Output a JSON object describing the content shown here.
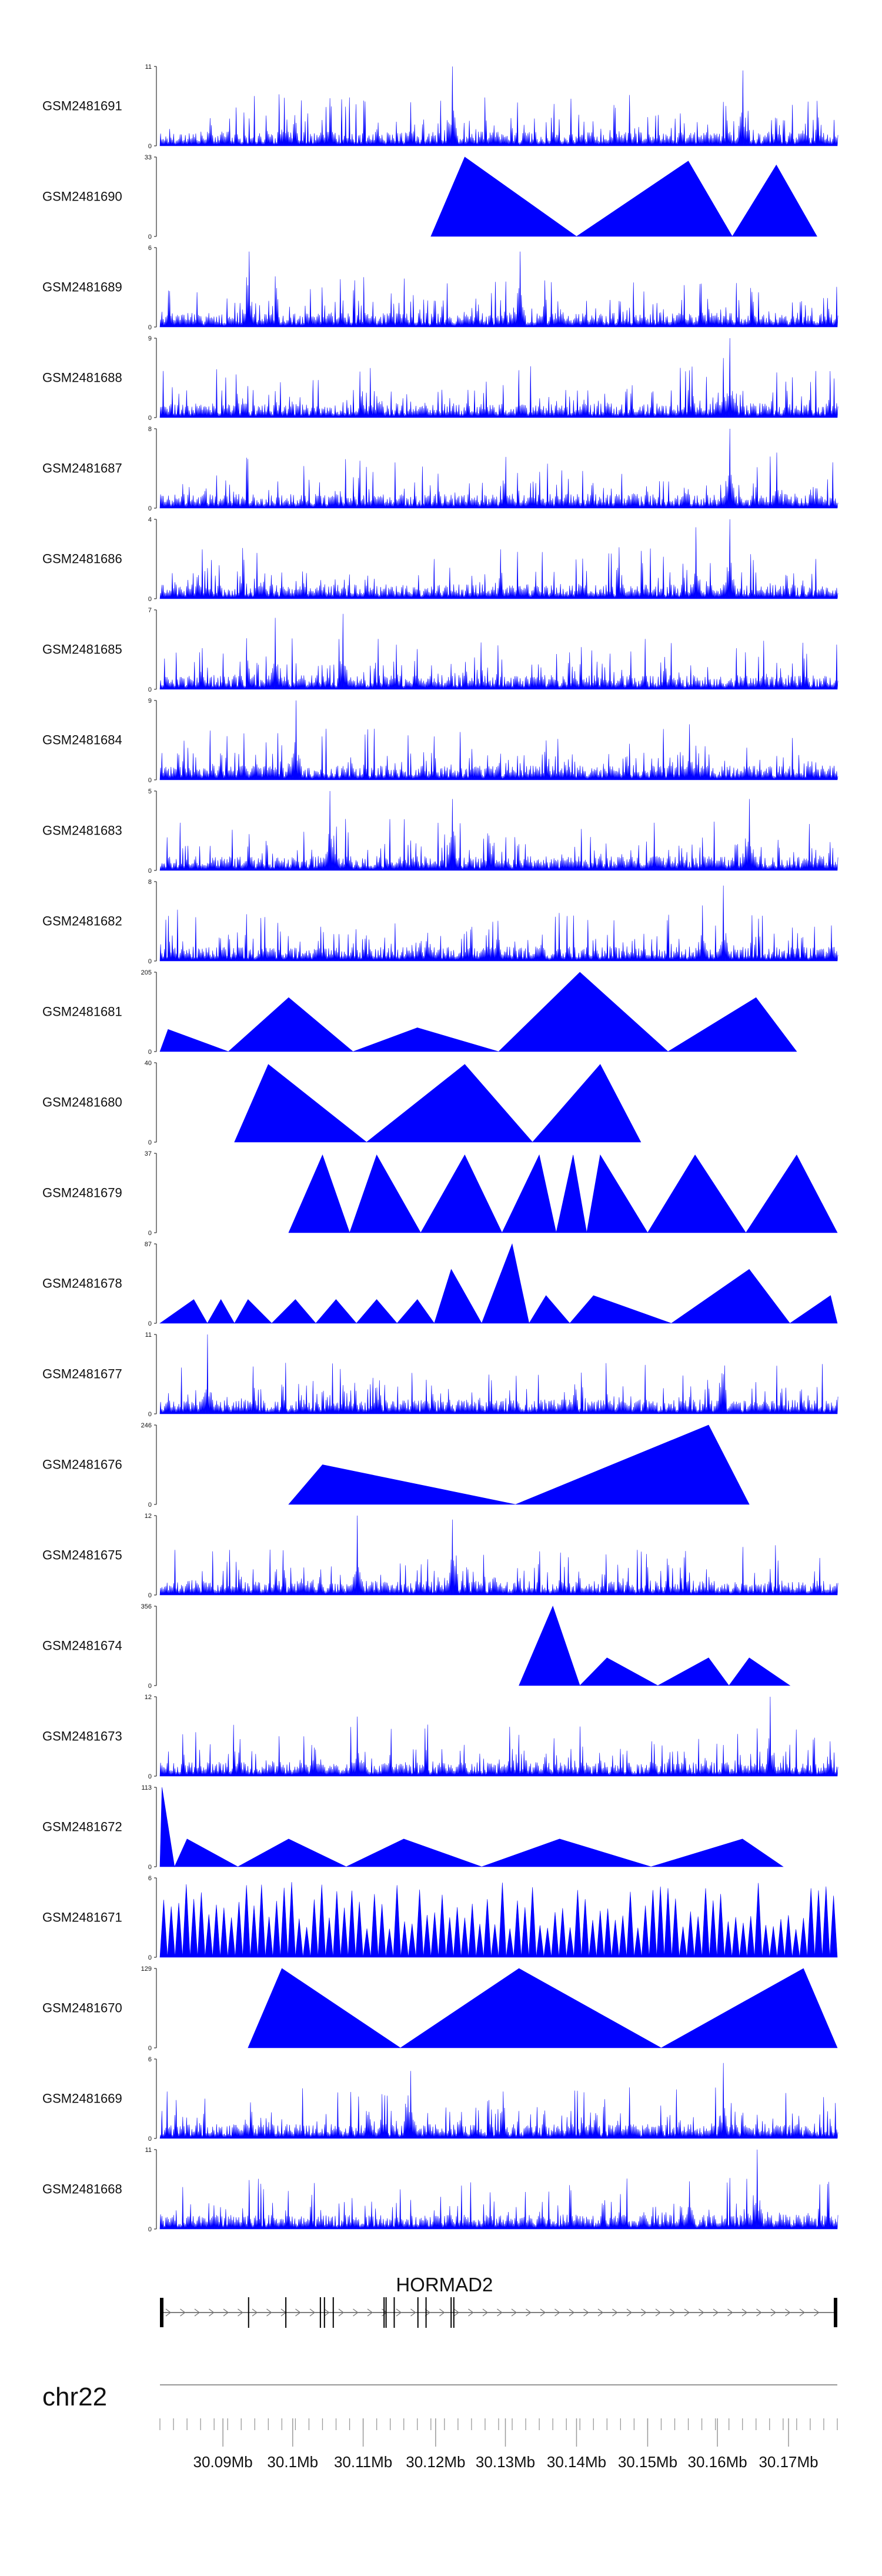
{
  "chart_data": {
    "type": "area",
    "color": "#0000ff",
    "tracks": [
      {
        "name": "GSM2481691",
        "ymax": "11",
        "ymin": "0",
        "pattern": "noise",
        "peaks": [
          [
            0.43,
            1.0
          ],
          [
            0.86,
            0.95
          ],
          [
            0.25,
            0.6
          ],
          [
            0.37,
            0.55
          ]
        ]
      },
      {
        "name": "GSM2481690",
        "ymax": "33",
        "ymin": "0",
        "pattern": "triangles",
        "peaks": [
          [
            0.45,
            1.0
          ],
          [
            0.78,
            0.95
          ],
          [
            0.91,
            0.9
          ]
        ]
      },
      {
        "name": "GSM2481689",
        "ymax": "6",
        "ymin": "0",
        "pattern": "noise",
        "peaks": [
          [
            0.13,
            0.95
          ],
          [
            0.53,
            0.95
          ]
        ]
      },
      {
        "name": "GSM2481688",
        "ymax": "9",
        "ymin": "0",
        "pattern": "noise",
        "peaks": [
          [
            0.84,
            1.0
          ],
          [
            0.83,
            0.75
          ]
        ]
      },
      {
        "name": "GSM2481687",
        "ymax": "8",
        "ymin": "0",
        "pattern": "noise",
        "peaks": [
          [
            0.84,
            1.0
          ],
          [
            0.91,
            0.7
          ]
        ]
      },
      {
        "name": "GSM2481686",
        "ymax": "4",
        "ymin": "0",
        "pattern": "noise",
        "peaks": [
          [
            0.84,
            1.0
          ],
          [
            0.79,
            0.9
          ]
        ]
      },
      {
        "name": "GSM2481685",
        "ymax": "7",
        "ymin": "0",
        "pattern": "noise",
        "peaks": [
          [
            0.27,
            0.95
          ],
          [
            0.17,
            0.9
          ]
        ]
      },
      {
        "name": "GSM2481684",
        "ymax": "9",
        "ymin": "0",
        "pattern": "noise",
        "peaks": [
          [
            0.2,
            1.0
          ],
          [
            0.78,
            0.7
          ]
        ]
      },
      {
        "name": "GSM2481683",
        "ymax": "5",
        "ymin": "0",
        "pattern": "noise",
        "peaks": [
          [
            0.25,
            1.0
          ],
          [
            0.43,
            0.9
          ],
          [
            0.87,
            0.9
          ]
        ]
      },
      {
        "name": "GSM2481682",
        "ymax": "8",
        "ymin": "0",
        "pattern": "noise",
        "peaks": [
          [
            0.83,
            0.95
          ],
          [
            0.8,
            0.7
          ]
        ]
      },
      {
        "name": "GSM2481681",
        "ymax": "205",
        "ymin": "0",
        "pattern": "triangles",
        "peaks": [
          [
            0.012,
            0.28
          ],
          [
            0.19,
            0.68
          ],
          [
            0.38,
            0.3
          ],
          [
            0.62,
            1.0
          ],
          [
            0.88,
            0.68
          ]
        ]
      },
      {
        "name": "GSM2481680",
        "ymax": "40",
        "ymin": "0",
        "pattern": "triangles",
        "peaks": [
          [
            0.16,
            0.98
          ],
          [
            0.45,
            0.98
          ],
          [
            0.65,
            0.98
          ]
        ]
      },
      {
        "name": "GSM2481679",
        "ymax": "37",
        "ymin": "0",
        "pattern": "triangles",
        "peaks": [
          [
            0.24,
            0.98
          ],
          [
            0.32,
            0.98
          ],
          [
            0.45,
            0.98
          ],
          [
            0.56,
            0.98
          ],
          [
            0.61,
            0.98
          ],
          [
            0.65,
            0.98
          ],
          [
            0.79,
            0.98
          ],
          [
            0.94,
            0.98
          ]
        ]
      },
      {
        "name": "GSM2481678",
        "ymax": "87",
        "ymin": "0",
        "pattern": "triangles",
        "peaks": [
          [
            0.05,
            0.3
          ],
          [
            0.09,
            0.3
          ],
          [
            0.13,
            0.3
          ],
          [
            0.2,
            0.3
          ],
          [
            0.26,
            0.3
          ],
          [
            0.32,
            0.3
          ],
          [
            0.38,
            0.3
          ],
          [
            0.43,
            0.68
          ],
          [
            0.52,
            1.0
          ],
          [
            0.57,
            0.35
          ],
          [
            0.64,
            0.35
          ],
          [
            0.87,
            0.68
          ],
          [
            0.99,
            0.35
          ]
        ]
      },
      {
        "name": "GSM2481677",
        "ymax": "11",
        "ymin": "0",
        "pattern": "noise",
        "peaks": [
          [
            0.07,
            1.0
          ],
          [
            0.83,
            0.5
          ]
        ]
      },
      {
        "name": "GSM2481676",
        "ymax": "246",
        "ymin": "0",
        "pattern": "triangles",
        "peaks": [
          [
            0.24,
            0.5
          ],
          [
            0.81,
            1.0
          ]
        ]
      },
      {
        "name": "GSM2481675",
        "ymax": "12",
        "ymin": "0",
        "pattern": "noise",
        "peaks": [
          [
            0.29,
            1.0
          ],
          [
            0.43,
            0.95
          ]
        ]
      },
      {
        "name": "GSM2481674",
        "ymax": "356",
        "ymin": "0",
        "pattern": "triangles",
        "peaks": [
          [
            0.58,
            1.0
          ],
          [
            0.66,
            0.35
          ],
          [
            0.81,
            0.35
          ],
          [
            0.87,
            0.35
          ]
        ]
      },
      {
        "name": "GSM2481673",
        "ymax": "12",
        "ymin": "0",
        "pattern": "noise",
        "peaks": [
          [
            0.9,
            1.0
          ],
          [
            0.29,
            0.75
          ]
        ]
      },
      {
        "name": "GSM2481672",
        "ymax": "113",
        "ymin": "0",
        "pattern": "triangles",
        "peaks": [
          [
            0.003,
            1.0
          ],
          [
            0.04,
            0.35
          ],
          [
            0.19,
            0.35
          ],
          [
            0.36,
            0.35
          ],
          [
            0.59,
            0.35
          ],
          [
            0.86,
            0.35
          ]
        ]
      },
      {
        "name": "GSM2481671",
        "ymax": "6",
        "ymin": "0",
        "pattern": "triangles-dense",
        "peaks": []
      },
      {
        "name": "GSM2481670",
        "ymax": "129",
        "ymin": "0",
        "pattern": "triangles",
        "peaks": [
          [
            0.18,
            1.0
          ],
          [
            0.53,
            1.0
          ],
          [
            0.95,
            1.0
          ]
        ]
      },
      {
        "name": "GSM2481669",
        "ymax": "6",
        "ymin": "0",
        "pattern": "noise",
        "peaks": [
          [
            0.83,
            0.95
          ],
          [
            0.37,
            0.85
          ]
        ]
      },
      {
        "name": "GSM2481668",
        "ymax": "11",
        "ymin": "0",
        "pattern": "noise",
        "peaks": [
          [
            0.88,
            1.0
          ],
          [
            0.78,
            0.6
          ]
        ]
      }
    ],
    "gene": {
      "name": "HORMAD2",
      "exons": [
        0.0,
        0.13,
        0.185,
        0.236,
        0.242,
        0.255,
        0.33,
        0.333,
        0.345,
        0.38,
        0.392,
        0.429,
        0.433,
        1.0
      ]
    },
    "chromosome": "chr22",
    "xaxis": {
      "ticks": [
        {
          "label": "30.09Mb",
          "pos": 0.093
        },
        {
          "label": "30.1Mb",
          "pos": 0.196
        },
        {
          "label": "30.11Mb",
          "pos": 0.3
        },
        {
          "label": "30.12Mb",
          "pos": 0.407
        },
        {
          "label": "30.13Mb",
          "pos": 0.51
        },
        {
          "label": "30.14Mb",
          "pos": 0.615
        },
        {
          "label": "30.15Mb",
          "pos": 0.72
        },
        {
          "label": "30.16Mb",
          "pos": 0.823
        },
        {
          "label": "30.17Mb",
          "pos": 0.928
        }
      ],
      "minor_count": 50
    }
  }
}
